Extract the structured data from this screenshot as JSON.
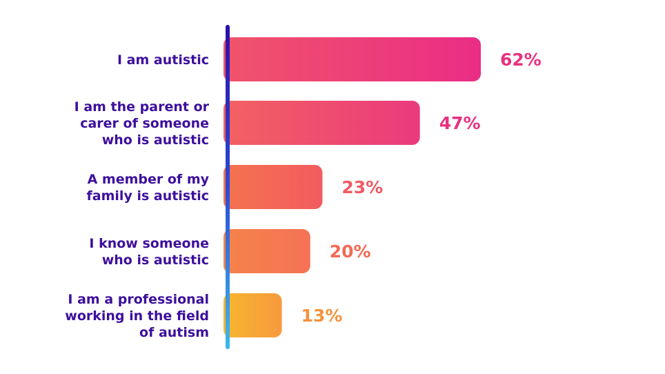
{
  "chart_data": {
    "type": "bar",
    "orientation": "horizontal",
    "categories": [
      [
        "I am autistic"
      ],
      [
        "I am the parent or",
        "carer of someone",
        "who is autistic"
      ],
      [
        "A member of my",
        "family is autistic"
      ],
      [
        "I know someone",
        "who is autistic"
      ],
      [
        "I am a professional",
        "working in the field",
        "of autism"
      ]
    ],
    "values": [
      62,
      47,
      23,
      20,
      13
    ],
    "value_labels": [
      "62%",
      "47%",
      "23%",
      "20%",
      "13%"
    ],
    "title": "",
    "xlabel": "",
    "ylabel": "",
    "grid": false,
    "legend": "none",
    "colors": {
      "category_text": "#3d0f9c",
      "value_text": [
        "#e8317f",
        "#e8317f",
        "#ef5a63",
        "#f26a55",
        "#f4923d"
      ],
      "bar_gradient_start": [
        "#f0546a",
        "#f26262",
        "#f3734f",
        "#f5834a",
        "#f7b52e"
      ],
      "bar_gradient_end": [
        "#ea2d86",
        "#ea3a7d",
        "#f35b5f",
        "#f57255",
        "#f79a3d"
      ],
      "axis_gradient": [
        "#2c0fa8",
        "#2a4bd6",
        "#3fb8ea"
      ]
    }
  }
}
